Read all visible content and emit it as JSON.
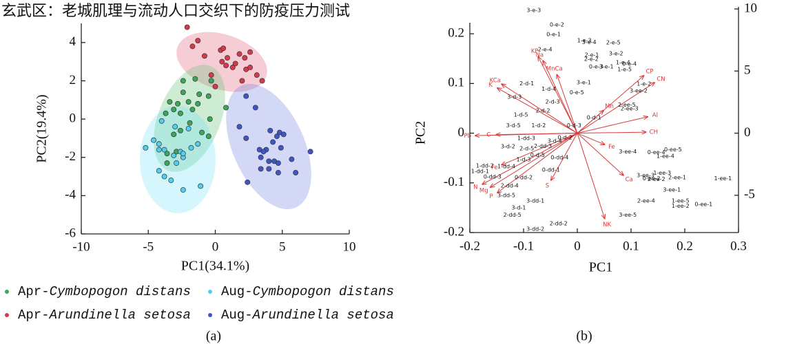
{
  "chart_data": [
    {
      "type": "scatter",
      "title": "玄武区：老城肌理与流动人口交织下的防疫压力测试",
      "panel_label": "(a)",
      "xlabel": "PC1(34.1%)",
      "ylabel": "PC2(19.4%)",
      "xlim": [
        -10,
        10
      ],
      "ylim": [
        -6,
        5
      ],
      "xticks": [
        -10,
        -5,
        0,
        5,
        10
      ],
      "yticks": [
        -6,
        -4,
        -2,
        0,
        2,
        4
      ],
      "series": [
        {
          "name": "Apr-Cymbopogon distans",
          "color": "#3ca65a",
          "x": [
            -2.4,
            -2.4,
            -1.5,
            -1.2,
            -0.5,
            -0.3,
            -2.8,
            -2.0,
            -3.4,
            -3.7,
            -3.1,
            -2.6,
            -1.7,
            -1.3,
            -0.4,
            0.8,
            -1.9,
            -2.6,
            -3.1,
            -1.0,
            -0.5,
            -3.6,
            -2.9,
            -3.6
          ],
          "y": [
            2.0,
            1.4,
            2.1,
            1.3,
            1.2,
            2.0,
            0.8,
            0.9,
            0.9,
            0.3,
            0.5,
            0.3,
            0.5,
            0.8,
            0.0,
            0.6,
            -0.2,
            -0.6,
            -0.8,
            -0.7,
            -0.9,
            -1.8,
            -1.7,
            -2.3
          ]
        },
        {
          "name": "Aug-Cymbopogon distans",
          "color": "#4fd0ee",
          "x": [
            -5.2,
            -4.6,
            -4.2,
            -4.2,
            -3.8,
            -3.1,
            -2.6,
            -2.4,
            -2.4,
            -2.9,
            -4.2,
            -3.8,
            -3.3,
            -2.4,
            -1.1,
            -1.8,
            -2.0,
            -1.3,
            -4.0,
            -3.0
          ],
          "y": [
            -1.5,
            -1.1,
            -1.6,
            -1.3,
            -1.6,
            -1.9,
            -1.7,
            -2.0,
            -1.8,
            -2.3,
            -2.7,
            -3.0,
            -3.2,
            -3.7,
            -3.5,
            -1.5,
            -0.5,
            -1.3,
            -0.1,
            -0.4
          ]
        },
        {
          "name": "Apr-Arundinella setosa",
          "color": "#d6384c",
          "x": [
            -2.1,
            -1.3,
            -0.8,
            -1.7,
            0.4,
            0.6,
            0.9,
            0.5,
            0.8,
            1.8,
            2.2,
            2.6,
            2.3,
            2.6,
            1.5,
            3.1,
            2.0,
            3.5,
            -0.3,
            1.3,
            0.0
          ],
          "y": [
            4.8,
            4.1,
            3.3,
            3.8,
            3.6,
            3.7,
            3.2,
            3.0,
            2.8,
            3.4,
            3.2,
            3.5,
            2.6,
            2.7,
            2.9,
            2.3,
            2.0,
            2.0,
            2.3,
            2.7,
            1.7
          ]
        },
        {
          "name": "Aug-Arundinella setosa",
          "color": "#3f56c4",
          "x": [
            2.3,
            3.0,
            1.8,
            4.1,
            2.3,
            4.6,
            4.8,
            3.8,
            4.3,
            4.9,
            5.1,
            3.3,
            4.0,
            3.6,
            4.4,
            4.7,
            3.4,
            4.0,
            4.7,
            5.7,
            6.0,
            7.1,
            3.4,
            2.4
          ],
          "y": [
            1.2,
            0.6,
            -0.4,
            -0.6,
            -1.0,
            -0.9,
            -0.7,
            -1.6,
            -1.2,
            -1.5,
            -0.8,
            -1.6,
            -2.6,
            -1.7,
            -2.2,
            -2.3,
            -2.0,
            -2.2,
            -2.8,
            -2.1,
            -2.8,
            -1.7,
            -2.6,
            -3.3
          ]
        }
      ]
    },
    {
      "type": "biplot",
      "panel_label": "(b)",
      "xlabel": "PC1",
      "ylabel": "PC2",
      "xlim": [
        -0.2,
        0.3
      ],
      "ylim": [
        -0.2,
        0.25
      ],
      "y2lim": [
        -8,
        10
      ],
      "xticks": [
        -0.2,
        -0.1,
        0,
        0.1,
        0.2,
        0.3
      ],
      "yticks": [
        -0.2,
        -0.1,
        0,
        0.1,
        0.2
      ],
      "y2ticks": [
        -5,
        0,
        5,
        10
      ],
      "samples": {
        "labels": [
          "3-e-3",
          "0-e-2",
          "0-e-1",
          "2-e-4",
          "1-e-3",
          "3-e-4",
          "2-e-5",
          "2-e-1",
          "3-e-2",
          "2-e-2",
          "1-e-4",
          "0-e-4",
          "0-e-3",
          "3-e-1",
          "1-e-5",
          "3-e-1",
          "0-e-5",
          "2-d-1",
          "1-d-4",
          "2-d-3",
          "3-d-3",
          "2-d-2",
          "1-d-5",
          "3-d-5",
          "1-d-2",
          "0-d-3",
          "0-d-1",
          "1-dd-3",
          "0-d-2",
          "3-d-4",
          "3-d-2",
          "2-d-5",
          "2-dd-3",
          "0-d-5",
          "1-d-3",
          "0-dd-4",
          "1-dd-4",
          "1-dd-2",
          "1-dd-1",
          "0-dd-1",
          "0-dd-3",
          "0-dd-2",
          "2-dd-4",
          "3-dd-5",
          "3-dd-1",
          "3-d-1",
          "2-dd-5",
          "2-dd-2",
          "3-dd-2",
          "2-ee-5",
          "2-ee-3",
          "1-e-2",
          "3-ee-2",
          "3-ee-4",
          "0-ee-4",
          "0-ee-5",
          "1-ee-4",
          "3-ee-3",
          "0-ee-2",
          "2-ee-2",
          "1-ee-3",
          "2-ee-1",
          "1-ee-1",
          "3-ee-1",
          "1-ee-5",
          "2-ee-4",
          "1-ee-2",
          "0-ee-1",
          "3-ee-5"
        ],
        "x": [
          -0.081,
          -0.038,
          -0.044,
          -0.06,
          0.013,
          0.022,
          0.067,
          0.027,
          0.072,
          0.026,
          0.085,
          0.097,
          0.035,
          0.054,
          0.088,
          0.012,
          -0.001,
          -0.094,
          -0.053,
          -0.046,
          -0.117,
          -0.064,
          -0.105,
          -0.119,
          -0.072,
          -0.006,
          0.031,
          -0.095,
          -0.023,
          -0.042,
          -0.129,
          -0.094,
          -0.064,
          -0.074,
          -0.1,
          -0.033,
          -0.132,
          -0.172,
          -0.181,
          -0.049,
          -0.158,
          -0.1,
          -0.126,
          -0.132,
          -0.078,
          -0.109,
          -0.121,
          -0.035,
          -0.078,
          0.092,
          0.097,
          0.124,
          0.114,
          0.094,
          0.147,
          0.178,
          0.164,
          0.127,
          0.138,
          0.147,
          0.158,
          0.186,
          0.271,
          0.176,
          0.192,
          0.128,
          0.192,
          0.235,
          0.094
        ],
        "y": [
          0.247,
          0.218,
          0.199,
          0.168,
          0.186,
          0.183,
          0.182,
          0.157,
          0.16,
          0.149,
          0.142,
          0.139,
          0.134,
          0.134,
          0.128,
          0.102,
          0.082,
          0.1,
          0.089,
          0.063,
          0.073,
          0.045,
          0.037,
          0.015,
          0.015,
          0.015,
          0.031,
          -0.01,
          -0.009,
          -0.016,
          -0.027,
          -0.031,
          -0.026,
          -0.044,
          -0.053,
          -0.049,
          -0.067,
          -0.066,
          -0.077,
          -0.074,
          -0.088,
          -0.089,
          -0.106,
          -0.125,
          -0.136,
          -0.15,
          -0.165,
          -0.182,
          -0.193,
          0.057,
          0.049,
          0.099,
          0.085,
          -0.037,
          -0.039,
          -0.033,
          -0.046,
          -0.085,
          -0.091,
          -0.093,
          -0.08,
          -0.089,
          -0.091,
          -0.114,
          -0.136,
          -0.136,
          -0.147,
          -0.143,
          -0.165
        ]
      },
      "loadings": {
        "color": "#d93a3a",
        "labels": [
          "KP",
          "Na",
          "MnCa",
          "KCa",
          "K",
          "Pb",
          "C",
          "Fe",
          "N",
          "Mg",
          "P",
          "S",
          "NK",
          "Ca",
          "Fe",
          "Mn",
          "Al",
          "CH",
          "CP",
          "CN"
        ],
        "x": [
          -0.073,
          -0.064,
          -0.038,
          -0.141,
          -0.149,
          -0.19,
          -0.151,
          -0.141,
          -0.177,
          -0.162,
          -0.149,
          -0.049,
          0.051,
          0.086,
          0.051,
          0.049,
          0.131,
          0.128,
          0.124,
          0.144
        ],
        "y": [
          0.154,
          0.146,
          0.118,
          0.099,
          0.091,
          -0.005,
          -0.003,
          -0.064,
          -0.103,
          -0.109,
          -0.12,
          -0.095,
          -0.172,
          -0.085,
          -0.023,
          0.046,
          0.033,
          0.002,
          0.116,
          0.102
        ]
      }
    }
  ]
}
